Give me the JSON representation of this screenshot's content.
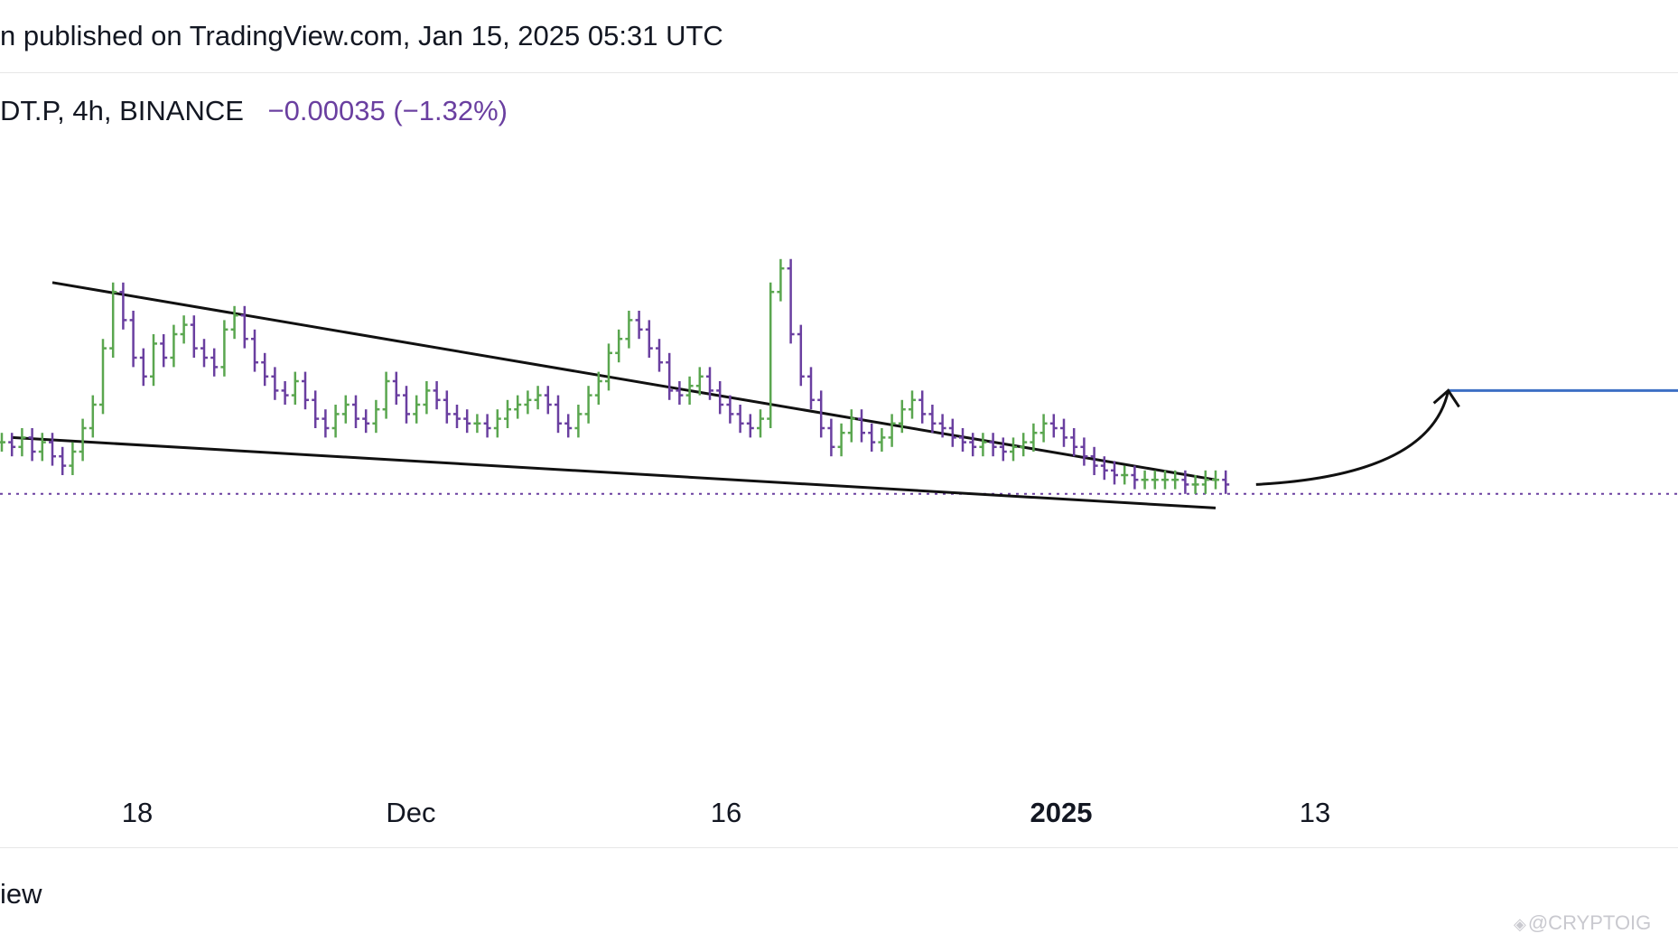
{
  "header": {
    "published_text": "n published on TradingView.com, Jan 15, 2025 05:31 UTC"
  },
  "symbol_info": {
    "symbol_text": "DT.P, 4h, BINANCE",
    "change_text": "−0.00035 (−1.32%)"
  },
  "footer": {
    "brand_text": "iew"
  },
  "watermark": {
    "icon": "diamond-logo-icon",
    "text": "@CRYPTOIG"
  },
  "colors": {
    "up": "#5aa64f",
    "down": "#6a3fa0",
    "trendline": "#111111",
    "target_line": "#3d6fc4",
    "price_line": "#6a3fa0"
  },
  "chart_data": {
    "type": "line",
    "title": "",
    "xlabel": "",
    "ylabel": "",
    "x_ticks": [
      "18",
      "Dec",
      "16",
      "2025",
      "13"
    ],
    "x_ticks_bold": [
      "2025"
    ],
    "ylim": [
      0,
      100
    ],
    "grid": false,
    "legend": "none",
    "series": [
      {
        "values": [
          52,
          51,
          53,
          50,
          52,
          49,
          47,
          50,
          55,
          60,
          72,
          84,
          78,
          70,
          66,
          73,
          70,
          75,
          77,
          72,
          70,
          68,
          76,
          79,
          74,
          69,
          66,
          63,
          62,
          65,
          61,
          57,
          55,
          58,
          60,
          57,
          56,
          59,
          65,
          62,
          58,
          60,
          63,
          61,
          58,
          57,
          56,
          56,
          55,
          57,
          59,
          60,
          61,
          62,
          60,
          56,
          55,
          58,
          62,
          65,
          71,
          74,
          78,
          76,
          72,
          69,
          63,
          62,
          64,
          66,
          63,
          60,
          58,
          56,
          55,
          57,
          84,
          89,
          75,
          66,
          61,
          55,
          51,
          54,
          57,
          54,
          52,
          53,
          56,
          59,
          61,
          58,
          56,
          55,
          53,
          52,
          51,
          52,
          51,
          50,
          51,
          52,
          54,
          56,
          55,
          53,
          51,
          49,
          47,
          46,
          45,
          45,
          44,
          44,
          44,
          44,
          44,
          43,
          43,
          44,
          44,
          43
        ]
      }
    ],
    "trendlines": [
      {
        "name": "upper-trendline",
        "from": [
          5,
          86
        ],
        "to": [
          120,
          44
        ]
      },
      {
        "name": "lower-trendline",
        "from": [
          1,
          53
        ],
        "to": [
          120,
          38
        ]
      }
    ],
    "horizontal_levels": [
      {
        "name": "current-price-level",
        "y": 41,
        "style": "dotted"
      },
      {
        "name": "target-level",
        "y": 63,
        "style": "solid"
      }
    ],
    "projection_arrow": {
      "from": [
        124,
        43
      ],
      "to": [
        143,
        63
      ]
    }
  }
}
